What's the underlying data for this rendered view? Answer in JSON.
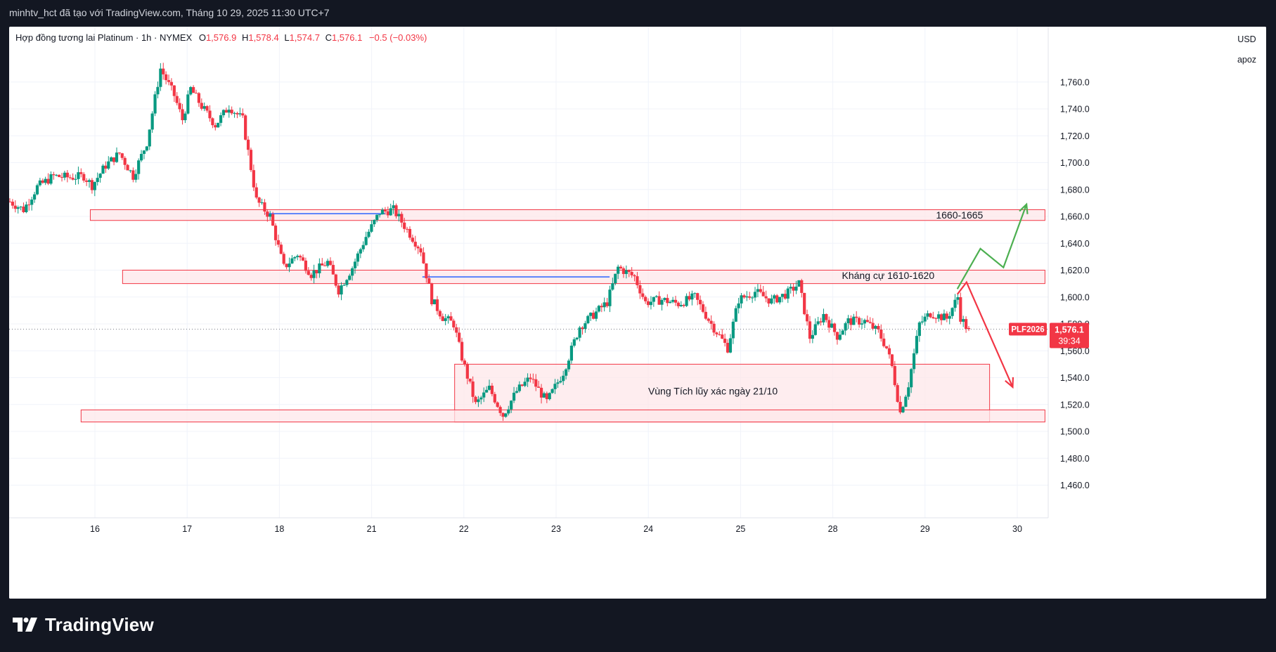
{
  "caption": "minhtv_hct đã tạo với TradingView.com, Tháng 10 29, 2025 11:30 UTC+7",
  "legend": {
    "title": "Hợp đồng tương lai Platinum · 1h · NYMEX",
    "o_label": "O",
    "o_value": "1,576.9",
    "h_label": "H",
    "h_value": "1,578.4",
    "l_label": "L",
    "l_value": "1,574.7",
    "c_label": "C",
    "c_value": "1,576.1",
    "change": "−0.5 (−0.03%)"
  },
  "currency": "USD",
  "scale_mode": "apoz",
  "logo_text": "TradingView",
  "colors": {
    "up": "#089981",
    "down": "#f23645",
    "zone_fill": "#fde7ea",
    "zone_stroke": "#f23645",
    "hline": "#2962ff",
    "arrow_up": "#4caf50",
    "arrow_down": "#f23645",
    "grid": "#f0f3fa"
  },
  "chart_data": {
    "type": "candlestick",
    "ylim": [
      1450,
      1775
    ],
    "y_ticks": [
      1460,
      1480,
      1500,
      1520,
      1540,
      1560,
      1580,
      1600,
      1620,
      1640,
      1660,
      1680,
      1700,
      1720,
      1740,
      1760
    ],
    "y_tick_labels": [
      "1,460.0",
      "1,480.0",
      "1,500.0",
      "1,520.0",
      "1,540.0",
      "1,560.0",
      "1,580.0",
      "1,600.0",
      "1,620.0",
      "1,640.0",
      "1,660.0",
      "1,680.0",
      "1,700.0",
      "1,720.0",
      "1,740.0",
      "1,760.0"
    ],
    "x_ticks": [
      {
        "label": "16",
        "i": 0
      },
      {
        "label": "17",
        "i": 1
      },
      {
        "label": "18",
        "i": 2
      },
      {
        "label": "21",
        "i": 3
      },
      {
        "label": "22",
        "i": 4
      },
      {
        "label": "23",
        "i": 5
      },
      {
        "label": "24",
        "i": 6
      },
      {
        "label": "25",
        "i": 7
      },
      {
        "label": "28",
        "i": 8
      },
      {
        "label": "29",
        "i": 9
      },
      {
        "label": "30",
        "i": 10
      }
    ],
    "last_price": {
      "symbol": "PLF2026",
      "value": 1576.1,
      "label": "1,576.1",
      "countdown": "39:34"
    },
    "anchors": [
      [
        0,
        1671
      ],
      [
        5,
        1665
      ],
      [
        10,
        1682
      ],
      [
        16,
        1690
      ],
      [
        22,
        1689
      ],
      [
        27,
        1690
      ],
      [
        30,
        1683
      ],
      [
        35,
        1698
      ],
      [
        40,
        1707
      ],
      [
        45,
        1690
      ],
      [
        50,
        1715
      ],
      [
        55,
        1770
      ],
      [
        60,
        1750
      ],
      [
        63,
        1732
      ],
      [
        66,
        1755
      ],
      [
        70,
        1742
      ],
      [
        75,
        1728
      ],
      [
        80,
        1742
      ],
      [
        85,
        1732
      ],
      [
        90,
        1672
      ],
      [
        95,
        1660
      ],
      [
        100,
        1622
      ],
      [
        105,
        1632
      ],
      [
        110,
        1617
      ],
      [
        116,
        1626
      ],
      [
        120,
        1605
      ],
      [
        125,
        1622
      ],
      [
        130,
        1645
      ],
      [
        135,
        1663
      ],
      [
        140,
        1665
      ],
      [
        145,
        1650
      ],
      [
        150,
        1635
      ],
      [
        154,
        1598
      ],
      [
        158,
        1585
      ],
      [
        162,
        1580
      ],
      [
        165,
        1555
      ],
      [
        170,
        1520
      ],
      [
        175,
        1532
      ],
      [
        180,
        1512
      ],
      [
        185,
        1530
      ],
      [
        190,
        1540
      ],
      [
        196,
        1522
      ],
      [
        202,
        1544
      ],
      [
        208,
        1578
      ],
      [
        212,
        1585
      ],
      [
        218,
        1596
      ],
      [
        222,
        1622
      ],
      [
        228,
        1615
      ],
      [
        232,
        1596
      ],
      [
        238,
        1598
      ],
      [
        244,
        1595
      ],
      [
        250,
        1600
      ],
      [
        256,
        1580
      ],
      [
        262,
        1562
      ],
      [
        266,
        1598
      ],
      [
        272,
        1604
      ],
      [
        278,
        1597
      ],
      [
        284,
        1603
      ],
      [
        288,
        1610
      ],
      [
        292,
        1570
      ],
      [
        297,
        1587
      ],
      [
        302,
        1571
      ],
      [
        306,
        1582
      ],
      [
        312,
        1582
      ],
      [
        317,
        1574
      ],
      [
        320,
        1562
      ],
      [
        322,
        1548
      ],
      [
        325,
        1514
      ],
      [
        328,
        1535
      ],
      [
        332,
        1580
      ],
      [
        336,
        1588
      ],
      [
        342,
        1584
      ],
      [
        346,
        1600
      ],
      [
        347,
        1585
      ],
      [
        349,
        1578
      ],
      [
        350,
        1576
      ]
    ],
    "zones": [
      {
        "name": "zone-1660",
        "y1": 1657,
        "y2": 1665,
        "x1": -0.05,
        "x2": 10.3,
        "label": "1660-1665"
      },
      {
        "name": "zone-resistance",
        "y1": 1610,
        "y2": 1620,
        "x1": 0.3,
        "x2": 10.3,
        "label": "Kháng cự 1610-1620"
      },
      {
        "name": "zone-accumulation",
        "y1": 1507,
        "y2": 1550,
        "x1": 3.9,
        "x2": 9.7,
        "label": "Vùng Tích lũy xác ngày 21/10"
      },
      {
        "name": "zone-support",
        "y1": 1507,
        "y2": 1516,
        "x1": -0.15,
        "x2": 10.3,
        "label": ""
      }
    ],
    "hlines": [
      {
        "name": "hline-1662",
        "y": 1662,
        "x1": 1.85,
        "x2": 3.15
      },
      {
        "name": "hline-1615",
        "y": 1615,
        "x1": 3.55,
        "x2": 5.58
      }
    ],
    "arrows": {
      "up": [
        [
          9.35,
          1606
        ],
        [
          9.6,
          1636
        ],
        [
          9.85,
          1622
        ],
        [
          10.1,
          1669
        ]
      ],
      "down": [
        [
          9.35,
          1602
        ],
        [
          9.45,
          1611
        ],
        [
          9.95,
          1533
        ]
      ]
    }
  }
}
